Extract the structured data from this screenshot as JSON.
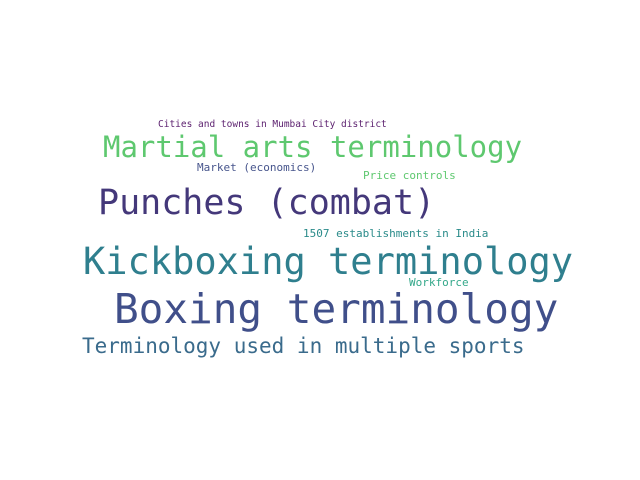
{
  "words": [
    {
      "text": "Cities and towns in Mumbai City district",
      "color": "#5b1f6e"
    },
    {
      "text": "Martial arts terminology",
      "color": "#5ec86f"
    },
    {
      "text": "Market (economics)",
      "color": "#47558c"
    },
    {
      "text": "Price controls",
      "color": "#5ec86f"
    },
    {
      "text": "Punches (combat)",
      "color": "#44387a"
    },
    {
      "text": "1507 establishments in India",
      "color": "#2a8b8a"
    },
    {
      "text": "Kickboxing terminology",
      "color": "#2f7f8e"
    },
    {
      "text": "Workforce",
      "color": "#34a88a"
    },
    {
      "text": "Boxing terminology",
      "color": "#404f8a"
    },
    {
      "text": "Terminology used in multiple sports",
      "color": "#3a6b8c"
    }
  ]
}
